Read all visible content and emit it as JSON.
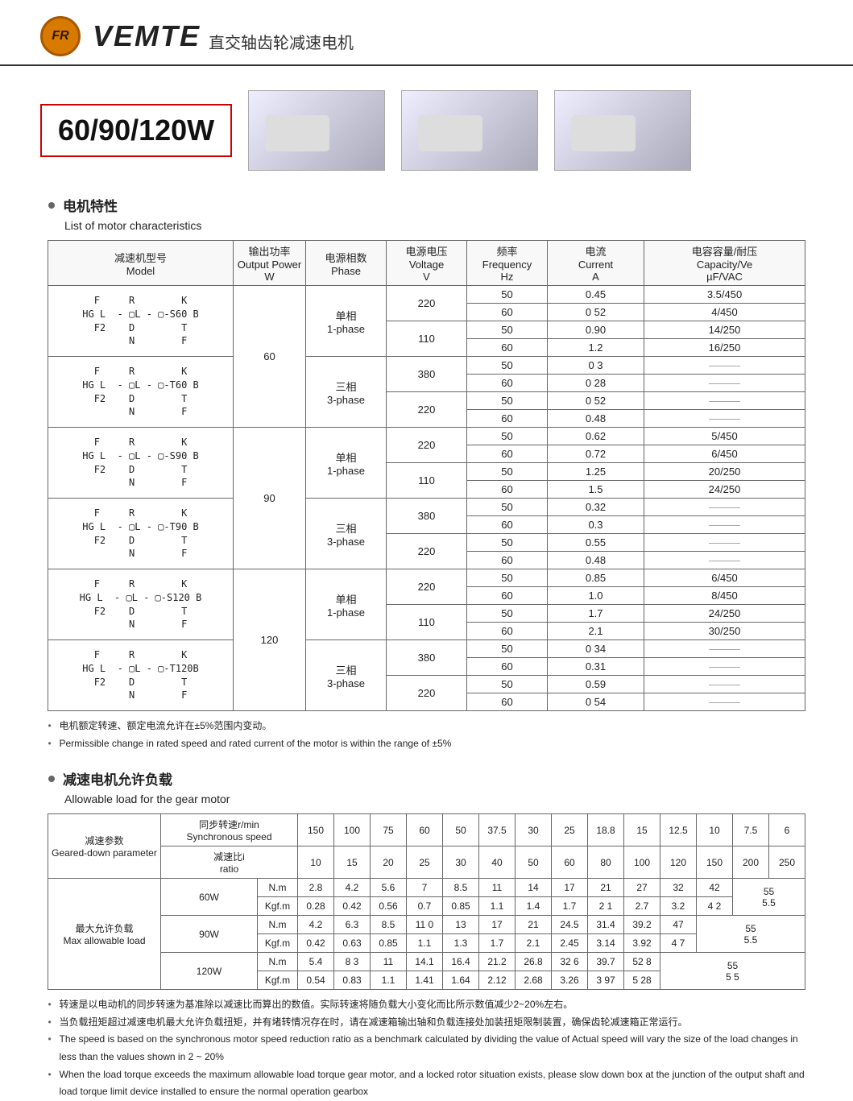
{
  "header": {
    "logo_text": "FR",
    "brand": "VEMTE",
    "brand_sub": "直交轴齿轮减速电机"
  },
  "title": "60/90/120W",
  "section1": {
    "heading_cn": "电机特性",
    "heading_en": "List of motor characteristics",
    "columns": {
      "model_cn": "减速机型号",
      "model_en": "Model",
      "power_cn": "输出功率",
      "power_en": "Output Power",
      "power_unit": "W",
      "phase_cn": "电源相数",
      "phase_en": "Phase",
      "voltage_cn": "电源电压",
      "voltage_en": "Voltage",
      "voltage_unit": "V",
      "freq_cn": "频率",
      "freq_en": "Frequency",
      "freq_unit": "Hz",
      "current_cn": "电流",
      "current_en": "Current",
      "current_unit": "A",
      "cap_cn": "电容容量/耐压",
      "cap_en": "Capacity/Ve",
      "cap_unit": "µF/VAC"
    },
    "phase1_label": "单相\n1-phase",
    "phase3_label": "三相\n3-phase",
    "model_lines": {
      "s60": [
        "F     R        K",
        "HG L  - ▢L - ▢-S60 B",
        "F2    D        T",
        "      N        F"
      ],
      "t60": [
        "F     R        K",
        "HG L  - ▢L - ▢-T60 B",
        "F2    D        T",
        "      N        F"
      ],
      "s90": [
        "F     R        K",
        "HG L  - ▢L - ▢-S90 B",
        "F2    D        T",
        "      N        F"
      ],
      "t90": [
        "F     R        K",
        "HG L  - ▢L - ▢-T90 B",
        "F2    D        T",
        "      N        F"
      ],
      "s120": [
        "F     R        K",
        "HG L  - ▢L - ▢-S120 B",
        "F2    D        T",
        "      N        F"
      ],
      "t120": [
        "F     R        K",
        "HG L  - ▢L - ▢-T120B",
        "F2    D        T",
        "      N        F"
      ]
    },
    "groups": [
      {
        "power": "60",
        "blocks": [
          {
            "model_key": "s60",
            "phase": "1",
            "volts": [
              {
                "v": "220",
                "rows": [
                  {
                    "f": "50",
                    "c": "0.45",
                    "cap": "3.5/450"
                  },
                  {
                    "f": "60",
                    "c": "0 52",
                    "cap": "4/450"
                  }
                ]
              },
              {
                "v": "110",
                "rows": [
                  {
                    "f": "50",
                    "c": "0.90",
                    "cap": "14/250"
                  },
                  {
                    "f": "60",
                    "c": "1.2",
                    "cap": "16/250"
                  }
                ]
              }
            ]
          },
          {
            "model_key": "t60",
            "phase": "3",
            "volts": [
              {
                "v": "380",
                "rows": [
                  {
                    "f": "50",
                    "c": "0 3",
                    "cap": "——"
                  },
                  {
                    "f": "60",
                    "c": "0 28",
                    "cap": "——"
                  }
                ]
              },
              {
                "v": "220",
                "rows": [
                  {
                    "f": "50",
                    "c": "0 52",
                    "cap": "——"
                  },
                  {
                    "f": "60",
                    "c": "0.48",
                    "cap": "——"
                  }
                ]
              }
            ]
          }
        ]
      },
      {
        "power": "90",
        "blocks": [
          {
            "model_key": "s90",
            "phase": "1",
            "volts": [
              {
                "v": "220",
                "rows": [
                  {
                    "f": "50",
                    "c": "0.62",
                    "cap": "5/450"
                  },
                  {
                    "f": "60",
                    "c": "0.72",
                    "cap": "6/450"
                  }
                ]
              },
              {
                "v": "110",
                "rows": [
                  {
                    "f": "50",
                    "c": "1.25",
                    "cap": "20/250"
                  },
                  {
                    "f": "60",
                    "c": "1.5",
                    "cap": "24/250"
                  }
                ]
              }
            ]
          },
          {
            "model_key": "t90",
            "phase": "3",
            "volts": [
              {
                "v": "380",
                "rows": [
                  {
                    "f": "50",
                    "c": "0.32",
                    "cap": "——"
                  },
                  {
                    "f": "60",
                    "c": "0.3",
                    "cap": "——"
                  }
                ]
              },
              {
                "v": "220",
                "rows": [
                  {
                    "f": "50",
                    "c": "0.55",
                    "cap": "——"
                  },
                  {
                    "f": "60",
                    "c": "0.48",
                    "cap": "——"
                  }
                ]
              }
            ]
          }
        ]
      },
      {
        "power": "120",
        "blocks": [
          {
            "model_key": "s120",
            "phase": "1",
            "volts": [
              {
                "v": "220",
                "rows": [
                  {
                    "f": "50",
                    "c": "0.85",
                    "cap": "6/450"
                  },
                  {
                    "f": "60",
                    "c": "1.0",
                    "cap": "8/450"
                  }
                ]
              },
              {
                "v": "110",
                "rows": [
                  {
                    "f": "50",
                    "c": "1.7",
                    "cap": "24/250"
                  },
                  {
                    "f": "60",
                    "c": "2.1",
                    "cap": "30/250"
                  }
                ]
              }
            ]
          },
          {
            "model_key": "t120",
            "phase": "3",
            "volts": [
              {
                "v": "380",
                "rows": [
                  {
                    "f": "50",
                    "c": "0 34",
                    "cap": "——"
                  },
                  {
                    "f": "60",
                    "c": "0.31",
                    "cap": "——"
                  }
                ]
              },
              {
                "v": "220",
                "rows": [
                  {
                    "f": "50",
                    "c": "0.59",
                    "cap": "——"
                  },
                  {
                    "f": "60",
                    "c": "0 54",
                    "cap": "——"
                  }
                ]
              }
            ]
          }
        ]
      }
    ],
    "notes": [
      "电机额定转速、额定电流允许在±5%范围内变动。",
      "Permissible change in rated speed and rated current of the motor is within the range of ±5%"
    ]
  },
  "section2": {
    "heading_cn": "减速电机允许负载",
    "heading_en": "Allowable load for the gear motor",
    "labels": {
      "param_cn": "减速参数",
      "param_en": "Geared-down parameter",
      "sync_cn": "同步转速r/min",
      "sync_en": "Synchronous speed",
      "ratio_cn": "减速比i",
      "ratio_en": "ratio",
      "maxload_cn": "最大允许负载",
      "maxload_en": "Max allowable load",
      "nm": "N.m",
      "kgfm": "Kgf.m"
    },
    "speeds": [
      "150",
      "100",
      "75",
      "60",
      "50",
      "37.5",
      "30",
      "25",
      "18.8",
      "15",
      "12.5",
      "10",
      "7.5",
      "6"
    ],
    "ratios": [
      "10",
      "15",
      "20",
      "25",
      "30",
      "40",
      "50",
      "60",
      "80",
      "100",
      "120",
      "150",
      "200",
      "250"
    ],
    "loads": [
      {
        "w": "60W",
        "nm": [
          "2.8",
          "4.2",
          "5.6",
          "7",
          "8.5",
          "11",
          "14",
          "17",
          "21",
          "27",
          "32",
          "42",
          {
            "span": 2,
            "val": "55"
          }
        ],
        "kgfm": [
          "0.28",
          "0.42",
          "0.56",
          "0.7",
          "0.85",
          "1.1",
          "1.4",
          "1.7",
          "2 1",
          "2.7",
          "3.2",
          "4 2",
          {
            "span": 2,
            "val": "5.5"
          }
        ]
      },
      {
        "w": "90W",
        "nm": [
          "4.2",
          "6.3",
          "8.5",
          "11 0",
          "13",
          "17",
          "21",
          "24.5",
          "31.4",
          "39.2",
          "47",
          {
            "span": 3,
            "val": "55"
          }
        ],
        "kgfm": [
          "0.42",
          "0.63",
          "0.85",
          "1.1",
          "1.3",
          "1.7",
          "2.1",
          "2.45",
          "3.14",
          "3.92",
          "4 7",
          {
            "span": 3,
            "val": "5.5"
          }
        ]
      },
      {
        "w": "120W",
        "nm": [
          "5.4",
          "8 3",
          "11",
          "14.1",
          "16.4",
          "21.2",
          "26.8",
          "32 6",
          "39.7",
          "52 8",
          {
            "span": 4,
            "val": "55"
          }
        ],
        "kgfm": [
          "0.54",
          "0.83",
          "1.1",
          "1.41",
          "1.64",
          "2.12",
          "2.68",
          "3.26",
          "3 97",
          "5 28",
          {
            "span": 4,
            "val": "5 5"
          }
        ]
      }
    ],
    "notes": [
      "转速是以电动机的同步转速为基准除以减速比而算出的数值。实际转速将随负载大小变化而比所示数值减少2~20%左右。",
      "当负载扭矩超过减速电机最大允许负载扭矩，并有堵转情况存在时，请在减速箱输出轴和负载连接处加装扭矩限制装置，确保齿轮减速箱正常运行。",
      "The speed is based on the synchronous motor speed reduction ratio as a benchmark calculated by dividing the value of  Actual speed will vary the size of the load changes in less than the values shown in 2 ~ 20%",
      "When the load torque exceeds the maximum allowable load torque gear motor, and a locked rotor situation exists, please slow down box at the junction of the output shaft and load torque limit device installed to ensure the normal operation gearbox"
    ]
  },
  "colors": {
    "border": "#666666",
    "accent": "#cc0000",
    "logo_bg": "#d97a00"
  }
}
